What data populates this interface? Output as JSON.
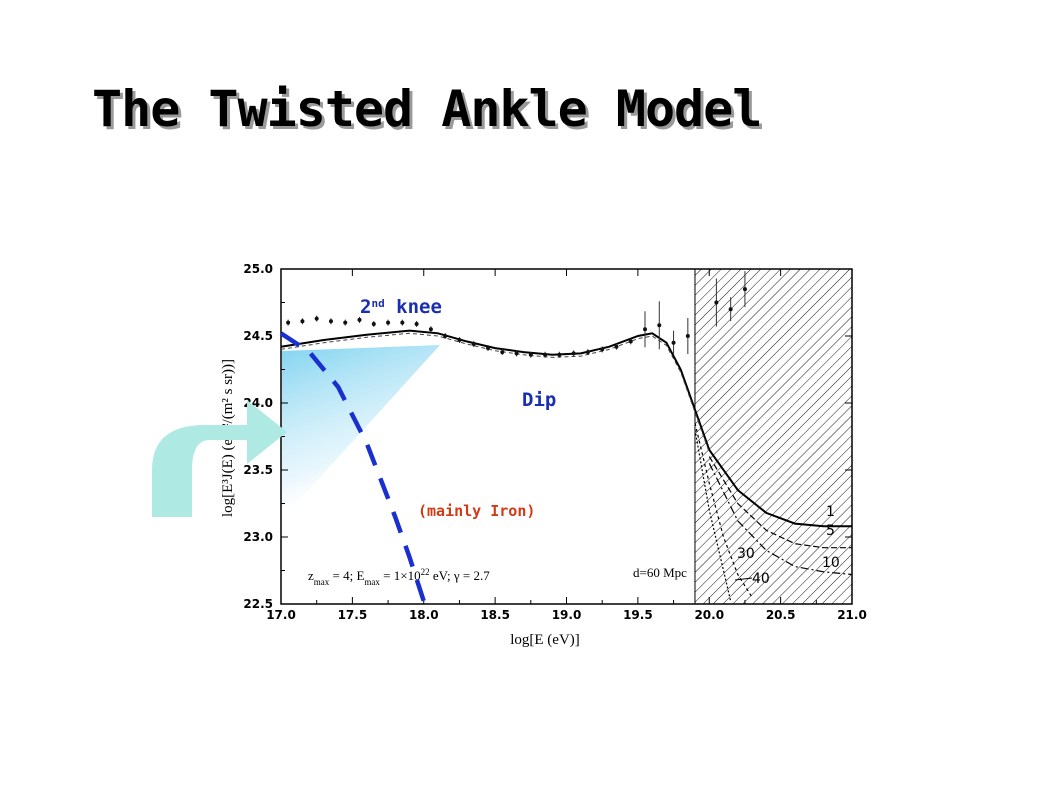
{
  "slide": {
    "title": "The Twisted Ankle Model"
  },
  "annotations": {
    "knee_base": "2",
    "knee_sup": "nd",
    "knee_word": " knee",
    "dip": "Dip",
    "iron": "(mainly Iron)",
    "params_z": "z",
    "params_z_sub": "max",
    "params_mid": " = 4; E",
    "params_e_sub": "max",
    "params_e": " = 1×10",
    "params_e_sup": "22",
    "params_tail": " eV; γ = 2.7",
    "distance": "d=60 Mpc"
  },
  "colors": {
    "blue_dash": "#1a2fcf",
    "fill_light_blue": "#7fd3f0",
    "arrow_teal": "#aee9e4",
    "text_blue": "#1a2fb0",
    "text_red": "#d23a16"
  },
  "chart_data": {
    "type": "line",
    "title": "",
    "xlabel": "log[E (eV)]",
    "ylabel": "log[E³J(E) (eV²/(m² s sr))]",
    "xlim": [
      17.0,
      21.0
    ],
    "ylim": [
      22.5,
      25.0
    ],
    "xticks": [
      "17.0",
      "17.5",
      "18.0",
      "18.5",
      "19.0",
      "19.5",
      "20.0",
      "20.5",
      "21.0"
    ],
    "yticks": [
      "22.5",
      "23.0",
      "23.5",
      "24.0",
      "24.5",
      "25.0"
    ],
    "hatched_region_x": [
      19.9,
      21.0
    ],
    "main_curve": {
      "x": [
        17.0,
        17.3,
        17.6,
        17.9,
        18.1,
        18.3,
        18.5,
        18.7,
        18.9,
        19.1,
        19.3,
        19.5,
        19.6,
        19.7,
        19.8,
        19.9,
        20.0
      ],
      "y": [
        24.42,
        24.47,
        24.51,
        24.54,
        24.52,
        24.46,
        24.41,
        24.38,
        24.36,
        24.37,
        24.42,
        24.5,
        24.52,
        24.45,
        24.25,
        23.95,
        23.65
      ]
    },
    "series": [
      {
        "name": "1",
        "x": [
          20.0,
          20.2,
          20.4,
          20.6,
          20.8,
          21.0
        ],
        "y": [
          23.65,
          23.35,
          23.18,
          23.1,
          23.08,
          23.08
        ]
      },
      {
        "name": "5",
        "x": [
          20.0,
          20.2,
          20.4,
          20.6,
          20.8,
          21.0
        ],
        "y": [
          23.6,
          23.25,
          23.05,
          22.95,
          22.92,
          22.92
        ]
      },
      {
        "name": "10",
        "x": [
          20.0,
          20.2,
          20.4,
          20.6,
          20.8,
          21.0
        ],
        "y": [
          23.55,
          23.12,
          22.9,
          22.78,
          22.74,
          22.72
        ]
      },
      {
        "name": "30",
        "x": [
          19.9,
          20.0,
          20.1,
          20.2,
          20.3
        ],
        "y": [
          23.85,
          23.4,
          23.0,
          22.72,
          22.55
        ]
      },
      {
        "name": "40",
        "x": [
          19.9,
          20.0,
          20.1,
          20.15
        ],
        "y": [
          23.8,
          23.2,
          22.75,
          22.52
        ]
      }
    ],
    "heavy_component": {
      "x": [
        17.0,
        17.2,
        17.4,
        17.6,
        17.8,
        17.9,
        18.0
      ],
      "y": [
        24.52,
        24.38,
        24.12,
        23.7,
        23.15,
        22.85,
        22.52
      ]
    },
    "data_points": {
      "x": [
        17.05,
        17.15,
        17.25,
        17.35,
        17.45,
        17.55,
        17.65,
        17.75,
        17.85,
        17.95,
        18.05,
        18.15,
        18.25,
        18.35,
        18.45,
        18.55,
        18.65,
        18.75,
        18.85,
        18.95,
        19.05,
        19.15,
        19.25,
        19.35,
        19.45,
        19.55,
        19.65,
        19.75,
        19.85,
        20.05,
        20.15,
        20.25
      ],
      "y": [
        24.6,
        24.61,
        24.63,
        24.61,
        24.6,
        24.62,
        24.59,
        24.6,
        24.6,
        24.59,
        24.55,
        24.5,
        24.47,
        24.44,
        24.41,
        24.38,
        24.37,
        24.36,
        24.36,
        24.36,
        24.37,
        24.38,
        24.4,
        24.42,
        24.46,
        24.55,
        24.58,
        24.45,
        24.5,
        24.75,
        24.7,
        24.85
      ]
    },
    "curve_labels": [
      "1",
      "5",
      "10",
      "30",
      "40"
    ]
  }
}
